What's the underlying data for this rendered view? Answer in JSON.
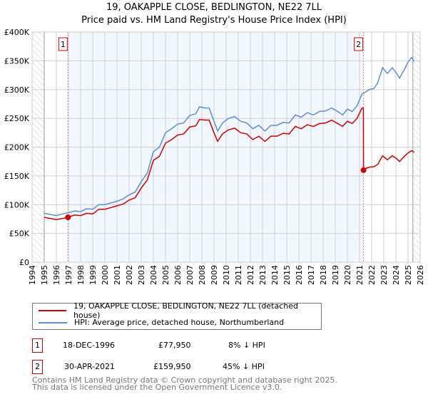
{
  "title": "19, OAKAPPLE CLOSE, BEDLINGTON, NE22 7LL",
  "subtitle": "Price paid vs. HM Land Registry's House Price Index (HPI)",
  "chart_data": {
    "type": "line",
    "xlim": [
      1994,
      2026
    ],
    "ylim": [
      0,
      400000
    ],
    "x_ticks": [
      "1994",
      "1995",
      "1996",
      "1997",
      "1998",
      "1999",
      "2000",
      "2001",
      "2002",
      "2003",
      "2004",
      "2005",
      "2006",
      "2007",
      "2008",
      "2009",
      "2010",
      "2011",
      "2012",
      "2013",
      "2014",
      "2015",
      "2016",
      "2017",
      "2018",
      "2019",
      "2020",
      "2021",
      "2022",
      "2023",
      "2024",
      "2025",
      "2026"
    ],
    "y_ticks": [
      {
        "v": 0,
        "l": "£0"
      },
      {
        "v": 50000,
        "l": "£50K"
      },
      {
        "v": 100000,
        "l": "£100K"
      },
      {
        "v": 150000,
        "l": "£150K"
      },
      {
        "v": 200000,
        "l": "£200K"
      },
      {
        "v": 250000,
        "l": "£250K"
      },
      {
        "v": 300000,
        "l": "£300K"
      },
      {
        "v": 350000,
        "l": "£350K"
      },
      {
        "v": 400000,
        "l": "£400K"
      }
    ],
    "grid": true,
    "hatched_ranges": [
      [
        1994,
        1995
      ],
      [
        2025.4,
        2026
      ]
    ],
    "shaded_range": [
      1996.96,
      2021.33
    ],
    "series": [
      {
        "name": "19, OAKAPPLE CLOSE, BEDLINGTON, NE22 7LL (detached house)",
        "color": "#cc0000",
        "points": [
          [
            1995,
            78
          ],
          [
            1995.5,
            76
          ],
          [
            1996,
            74
          ],
          [
            1996.5,
            76
          ],
          [
            1996.96,
            78
          ],
          [
            1997.5,
            82
          ],
          [
            1998,
            81
          ],
          [
            1998.5,
            85
          ],
          [
            1999,
            84
          ],
          [
            1999.5,
            92
          ],
          [
            2000,
            92
          ],
          [
            2000.5,
            95
          ],
          [
            2001,
            98
          ],
          [
            2001.5,
            101
          ],
          [
            2002,
            108
          ],
          [
            2002.5,
            112
          ],
          [
            2003,
            129
          ],
          [
            2003.5,
            143
          ],
          [
            2004,
            177
          ],
          [
            2004.5,
            184
          ],
          [
            2005,
            207
          ],
          [
            2005.5,
            213
          ],
          [
            2006,
            221
          ],
          [
            2006.5,
            223
          ],
          [
            2007,
            235
          ],
          [
            2007.5,
            237
          ],
          [
            2007.8,
            248
          ],
          [
            2008.3,
            247
          ],
          [
            2008.6,
            247
          ],
          [
            2009,
            225
          ],
          [
            2009.3,
            210
          ],
          [
            2009.7,
            223
          ],
          [
            2010.2,
            230
          ],
          [
            2010.7,
            233
          ],
          [
            2011.2,
            225
          ],
          [
            2011.7,
            223
          ],
          [
            2012.2,
            213
          ],
          [
            2012.7,
            219
          ],
          [
            2013.2,
            210
          ],
          [
            2013.7,
            219
          ],
          [
            2014.2,
            219
          ],
          [
            2014.7,
            224
          ],
          [
            2015.2,
            223
          ],
          [
            2015.7,
            236
          ],
          [
            2016.2,
            232
          ],
          [
            2016.7,
            239
          ],
          [
            2017.2,
            236
          ],
          [
            2017.7,
            241
          ],
          [
            2018.2,
            242
          ],
          [
            2018.7,
            247
          ],
          [
            2019.2,
            241
          ],
          [
            2019.6,
            236
          ],
          [
            2020,
            245
          ],
          [
            2020.4,
            241
          ],
          [
            2020.8,
            250
          ],
          [
            2021.2,
            268
          ],
          [
            2021.32,
            268
          ],
          [
            2021.33,
            160
          ],
          [
            2021.5,
            163
          ],
          [
            2021.8,
            165
          ],
          [
            2022.2,
            166
          ],
          [
            2022.5,
            170
          ],
          [
            2022.9,
            185
          ],
          [
            2023.3,
            178
          ],
          [
            2023.7,
            185
          ],
          [
            2024,
            181
          ],
          [
            2024.3,
            175
          ],
          [
            2024.7,
            184
          ],
          [
            2025,
            190
          ],
          [
            2025.3,
            194
          ],
          [
            2025.5,
            191
          ]
        ]
      },
      {
        "name": "HPI: Average price, detached house, Northumberland",
        "color": "#5b8fd4",
        "points": [
          [
            1995,
            85
          ],
          [
            1995.5,
            83
          ],
          [
            1996,
            81
          ],
          [
            1996.5,
            84
          ],
          [
            1997,
            86
          ],
          [
            1997.5,
            89
          ],
          [
            1998,
            88
          ],
          [
            1998.5,
            93
          ],
          [
            1999,
            92
          ],
          [
            1999.5,
            100
          ],
          [
            2000,
            100
          ],
          [
            2000.5,
            103
          ],
          [
            2001,
            106
          ],
          [
            2001.5,
            110
          ],
          [
            2002,
            117
          ],
          [
            2002.5,
            122
          ],
          [
            2003,
            140
          ],
          [
            2003.5,
            155
          ],
          [
            2004,
            192
          ],
          [
            2004.5,
            200
          ],
          [
            2005,
            225
          ],
          [
            2005.5,
            232
          ],
          [
            2006,
            240
          ],
          [
            2006.5,
            242
          ],
          [
            2007,
            255
          ],
          [
            2007.5,
            258
          ],
          [
            2007.8,
            270
          ],
          [
            2008.3,
            268
          ],
          [
            2008.6,
            268
          ],
          [
            2009,
            245
          ],
          [
            2009.3,
            228
          ],
          [
            2009.7,
            242
          ],
          [
            2010.2,
            250
          ],
          [
            2010.7,
            253
          ],
          [
            2011.2,
            245
          ],
          [
            2011.7,
            242
          ],
          [
            2012.2,
            232
          ],
          [
            2012.7,
            238
          ],
          [
            2013.2,
            228
          ],
          [
            2013.7,
            238
          ],
          [
            2014.2,
            238
          ],
          [
            2014.7,
            243
          ],
          [
            2015.2,
            242
          ],
          [
            2015.7,
            256
          ],
          [
            2016.2,
            252
          ],
          [
            2016.7,
            260
          ],
          [
            2017.2,
            256
          ],
          [
            2017.7,
            262
          ],
          [
            2018.2,
            263
          ],
          [
            2018.7,
            268
          ],
          [
            2019.2,
            262
          ],
          [
            2019.6,
            256
          ],
          [
            2020,
            266
          ],
          [
            2020.4,
            262
          ],
          [
            2020.8,
            272
          ],
          [
            2021.2,
            292
          ],
          [
            2021.5,
            296
          ],
          [
            2021.8,
            300
          ],
          [
            2022.2,
            302
          ],
          [
            2022.5,
            312
          ],
          [
            2022.9,
            338
          ],
          [
            2023.3,
            328
          ],
          [
            2023.7,
            338
          ],
          [
            2024,
            330
          ],
          [
            2024.3,
            320
          ],
          [
            2024.7,
            335
          ],
          [
            2025,
            348
          ],
          [
            2025.3,
            356
          ],
          [
            2025.5,
            349
          ]
        ]
      }
    ],
    "y_units": "£K",
    "sales": [
      {
        "label": "1",
        "x": 1996.96,
        "price": 77950,
        "date": "18-DEC-1996",
        "price_text": "£77,950",
        "hpi_text": "8% ↓ HPI"
      },
      {
        "label": "2",
        "x": 2021.33,
        "price": 159950,
        "date": "30-APR-2021",
        "price_text": "£159,950",
        "hpi_text": "45% ↓ HPI"
      }
    ]
  },
  "footer": [
    "Contains HM Land Registry data © Crown copyright and database right 2025.",
    "This data is licensed under the Open Government Licence v3.0."
  ]
}
